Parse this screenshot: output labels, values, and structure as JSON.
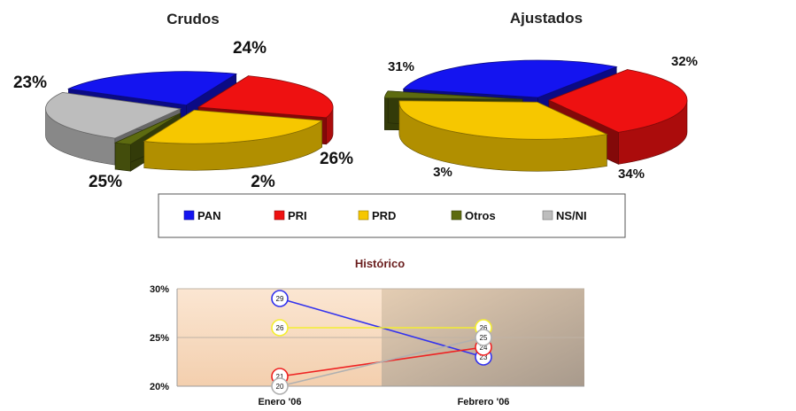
{
  "colors": {
    "PAN": "#1414f0",
    "PRI": "#ee1111",
    "PRD": "#f6c700",
    "Otros": "#5d6b10",
    "NS/NI": "#bdbdbd"
  },
  "chart_data": [
    {
      "type": "pie",
      "title": "Crudos",
      "slices": [
        {
          "name": "PAN",
          "value": 23,
          "label": "23%"
        },
        {
          "name": "PRI",
          "value": 24,
          "label": "24%"
        },
        {
          "name": "PRD",
          "value": 26,
          "label": "26%"
        },
        {
          "name": "Otros",
          "value": 2,
          "label": "2%"
        },
        {
          "name": "NS/NI",
          "value": 25,
          "label": "25%"
        }
      ]
    },
    {
      "type": "pie",
      "title": "Ajustados",
      "slices": [
        {
          "name": "PAN",
          "value": 31,
          "label": "31%"
        },
        {
          "name": "PRI",
          "value": 32,
          "label": "32%"
        },
        {
          "name": "PRD",
          "value": 34,
          "label": "34%"
        },
        {
          "name": "Otros",
          "value": 3,
          "label": "3%"
        }
      ]
    },
    {
      "type": "line",
      "title": "Histórico",
      "categories": [
        "Enero '06",
        "Febrero '06"
      ],
      "y_ticks": [
        "30%",
        "25%",
        "20%"
      ],
      "ylim": [
        20,
        30
      ],
      "series": [
        {
          "name": "PAN",
          "values": [
            29,
            23
          ],
          "labels": [
            "29",
            "23"
          ]
        },
        {
          "name": "PRI",
          "values": [
            21,
            24
          ],
          "labels": [
            "21",
            "24"
          ]
        },
        {
          "name": "PRD",
          "values": [
            26,
            26
          ],
          "labels": [
            "26",
            "26"
          ]
        },
        {
          "name": "NS/NI",
          "values": [
            20,
            25
          ],
          "labels": [
            "20",
            "25"
          ]
        }
      ]
    }
  ],
  "legend": [
    "PAN",
    "PRI",
    "PRD",
    "Otros",
    "NS/NI"
  ]
}
